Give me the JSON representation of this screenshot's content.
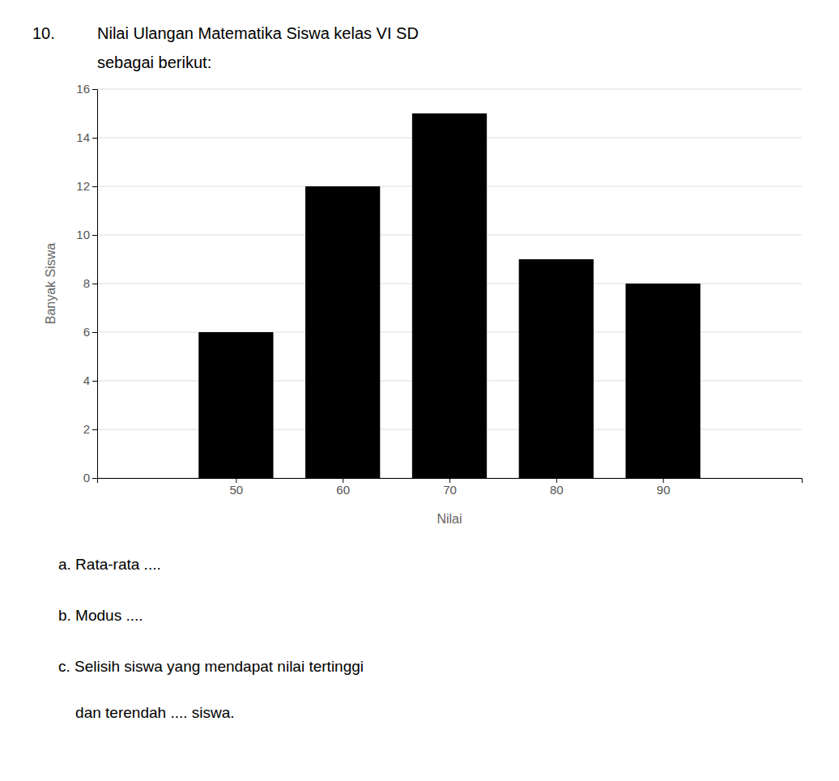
{
  "chart_data": {
    "type": "bar",
    "title": "Nilai Ulangan Matematika Siswa kelas VI SD",
    "subtitle": "sebagai berikut:",
    "annotations": [
      "10.",
      "a. Rata-rata ....",
      "b. Modus ....",
      "c. Selisih siswa yang mendapat nilai tertinggi",
      "    dan terendah .... siswa."
    ],
    "x": [
      50,
      60,
      70,
      80,
      90
    ],
    "values": [
      6,
      12,
      15,
      9,
      8
    ],
    "color": "#000000",
    "xlabel": "Nilai",
    "ylabel": "Banyak Siswa",
    "xlim": [
      37,
      103
    ],
    "xticks": [
      50,
      60,
      70,
      80,
      90
    ],
    "ylim": [
      0,
      16
    ],
    "yticks": [
      0,
      2,
      4,
      6,
      8,
      10,
      12,
      14,
      16
    ],
    "grid": true
  }
}
